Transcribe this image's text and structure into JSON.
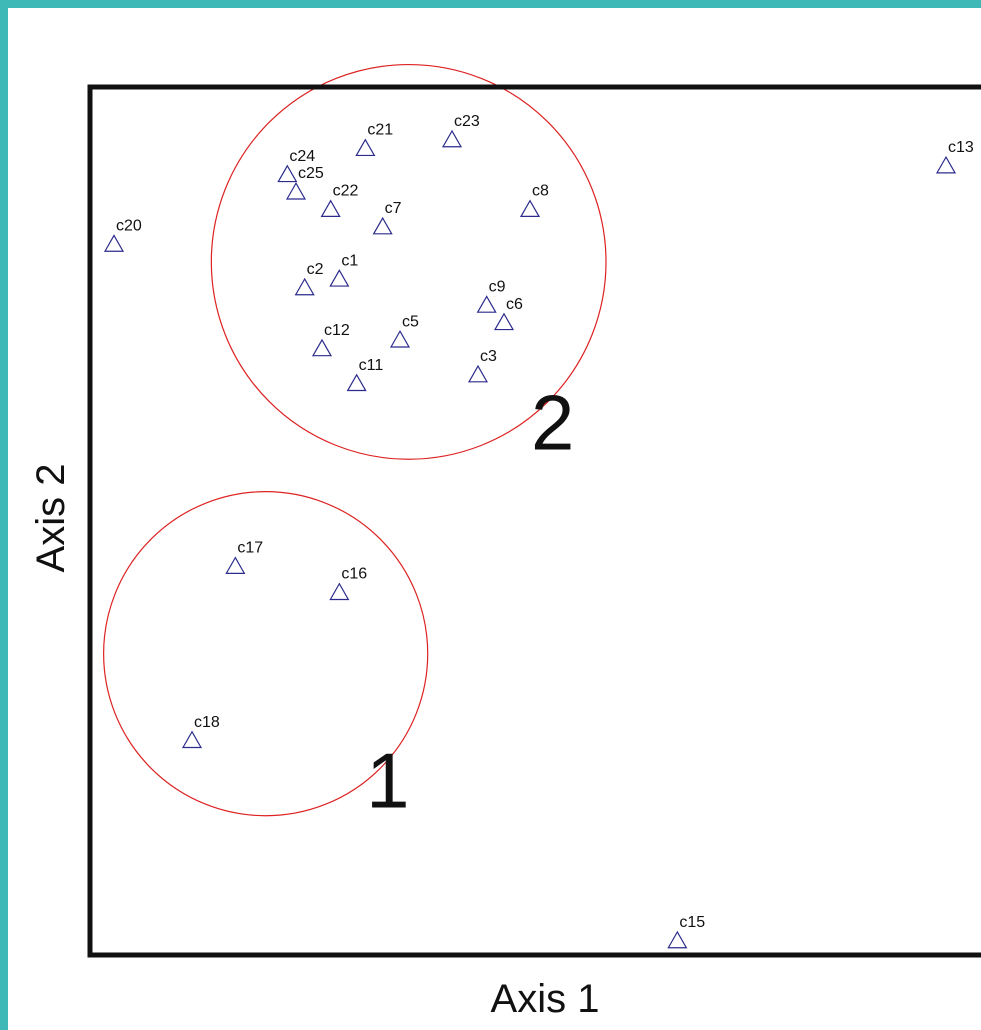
{
  "chart_data": {
    "type": "scatter",
    "title": "",
    "xlabel": "Axis 1",
    "ylabel": "Axis 2",
    "marker": "triangle-open",
    "marker_color": "#2b2b8c",
    "circle_color": "#dd2222",
    "frame_color": "#3fb8b8",
    "points": [
      {
        "label": "c20",
        "x": 0.03,
        "y": 0.82
      },
      {
        "label": "c24",
        "x": 0.23,
        "y": 0.9
      },
      {
        "label": "c25",
        "x": 0.24,
        "y": 0.88
      },
      {
        "label": "c21",
        "x": 0.32,
        "y": 0.93
      },
      {
        "label": "c22",
        "x": 0.28,
        "y": 0.86
      },
      {
        "label": "c23",
        "x": 0.42,
        "y": 0.94
      },
      {
        "label": "c7",
        "x": 0.34,
        "y": 0.84
      },
      {
        "label": "c8",
        "x": 0.51,
        "y": 0.86
      },
      {
        "label": "c2",
        "x": 0.25,
        "y": 0.77
      },
      {
        "label": "c1",
        "x": 0.29,
        "y": 0.78
      },
      {
        "label": "c9",
        "x": 0.46,
        "y": 0.75
      },
      {
        "label": "c6",
        "x": 0.48,
        "y": 0.73
      },
      {
        "label": "c12",
        "x": 0.27,
        "y": 0.7
      },
      {
        "label": "c5",
        "x": 0.36,
        "y": 0.71
      },
      {
        "label": "c11",
        "x": 0.31,
        "y": 0.66
      },
      {
        "label": "c3",
        "x": 0.45,
        "y": 0.67
      },
      {
        "label": "c13",
        "x": 0.99,
        "y": 0.91
      },
      {
        "label": "c17",
        "x": 0.17,
        "y": 0.45
      },
      {
        "label": "c16",
        "x": 0.29,
        "y": 0.42
      },
      {
        "label": "c18",
        "x": 0.12,
        "y": 0.25
      },
      {
        "label": "c15",
        "x": 0.68,
        "y": 0.02
      }
    ],
    "groups": [
      {
        "label": "1",
        "members": [
          "c17",
          "c16",
          "c18"
        ]
      },
      {
        "label": "2",
        "members": [
          "c24",
          "c25",
          "c21",
          "c22",
          "c23",
          "c7",
          "c8",
          "c2",
          "c1",
          "c9",
          "c6",
          "c12",
          "c5",
          "c11",
          "c3"
        ]
      }
    ],
    "xlim": [
      0,
      1
    ],
    "ylim": [
      0,
      1
    ],
    "grid": false
  }
}
